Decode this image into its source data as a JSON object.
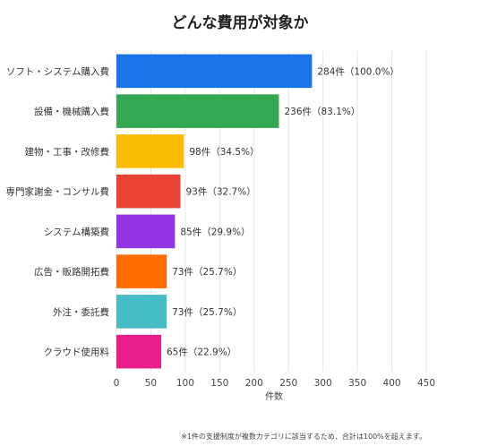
{
  "chart_data": {
    "type": "bar",
    "orientation": "horizontal",
    "title": "どんな費用が対象か",
    "categories": [
      "ソフト・システム購入費",
      "設備・機械購入費",
      "建物・工事・改修費",
      "専門家謝金・コンサル費",
      "システム構築費",
      "広告・販路開拓費",
      "外注・委託費",
      "クラウド使用料"
    ],
    "values": [
      284,
      236,
      98,
      93,
      85,
      73,
      73,
      65
    ],
    "value_labels": [
      "284件（100.0%）",
      "236件（83.1%）",
      "98件（34.5%）",
      "93件（32.7%）",
      "85件（29.9%）",
      "73件（25.7%）",
      "73件（25.7%）",
      "65件（22.9%）"
    ],
    "colors": [
      "#1a73e8",
      "#34a853",
      "#fbbc04",
      "#ea4335",
      "#9334e6",
      "#ff6d01",
      "#46bdc6",
      "#e91e8c"
    ],
    "xlabel": "件数",
    "ylabel": "",
    "xlim": [
      0,
      450
    ],
    "x_ticks": [
      0,
      50,
      100,
      150,
      200,
      250,
      300,
      350,
      400,
      450
    ],
    "grid": true,
    "legend": false,
    "note": "※1件の支援制度が複数カテゴリに該当するため、合計は100%を超えます。"
  }
}
